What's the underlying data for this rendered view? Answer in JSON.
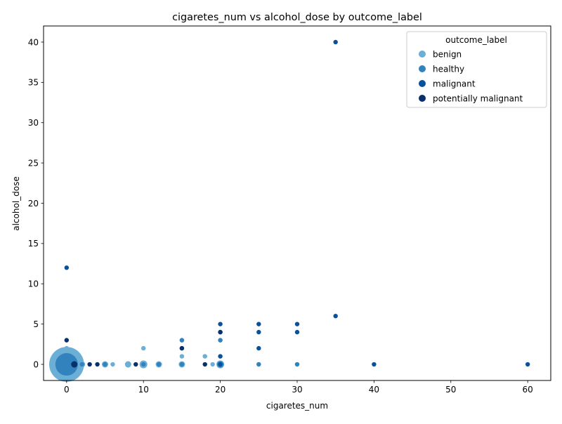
{
  "chart_data": {
    "type": "scatter",
    "title": "cigaretes_num vs alcohol_dose by outcome_label",
    "xlabel": "cigaretes_num",
    "ylabel": "alcohol_dose",
    "xlim": [
      -3,
      63
    ],
    "ylim": [
      -2,
      42
    ],
    "xticks": [
      0,
      10,
      20,
      30,
      40,
      50,
      60
    ],
    "yticks": [
      0,
      5,
      10,
      15,
      20,
      25,
      30,
      35,
      40
    ],
    "grid": false,
    "legend": {
      "title": "outcome_label",
      "placement": "top-right",
      "entries": [
        "benign",
        "healthy",
        "malignant",
        "potentially malignant"
      ]
    },
    "colors": {
      "benign": "#6baed6",
      "healthy": "#3182bd",
      "malignant": "#08519c",
      "potentially malignant": "#08306b"
    },
    "series": [
      {
        "name": "benign",
        "points": [
          [
            0,
            0,
            60
          ],
          [
            0,
            1,
            1
          ],
          [
            0,
            2,
            1
          ],
          [
            1,
            0,
            2
          ],
          [
            1,
            1,
            1
          ],
          [
            2,
            0,
            2
          ],
          [
            5,
            0,
            2
          ],
          [
            6,
            0,
            1
          ],
          [
            8,
            0,
            2
          ],
          [
            10,
            0,
            3
          ],
          [
            10,
            2,
            1
          ],
          [
            12,
            0,
            2
          ],
          [
            15,
            0,
            2
          ],
          [
            15,
            1,
            1
          ],
          [
            15,
            3,
            1
          ],
          [
            18,
            1,
            1
          ],
          [
            19,
            0,
            1
          ],
          [
            20,
            0,
            3
          ],
          [
            20,
            3,
            1
          ],
          [
            25,
            0,
            1
          ],
          [
            30,
            0,
            1
          ]
        ]
      },
      {
        "name": "healthy",
        "points": [
          [
            0,
            0,
            25
          ],
          [
            2,
            0,
            1
          ],
          [
            5,
            0,
            1
          ],
          [
            10,
            0,
            1
          ],
          [
            12,
            0,
            1
          ],
          [
            15,
            0,
            1
          ],
          [
            15,
            3,
            1
          ],
          [
            20,
            0,
            2
          ],
          [
            20,
            3,
            1
          ],
          [
            25,
            0,
            1
          ],
          [
            30,
            0,
            1
          ]
        ]
      },
      {
        "name": "malignant",
        "points": [
          [
            0,
            12,
            1
          ],
          [
            15,
            2,
            1
          ],
          [
            20,
            0,
            1
          ],
          [
            20,
            1,
            1
          ],
          [
            20,
            4,
            1
          ],
          [
            20,
            5,
            1
          ],
          [
            25,
            2,
            1
          ],
          [
            25,
            4,
            1
          ],
          [
            25,
            5,
            1
          ],
          [
            30,
            4,
            1
          ],
          [
            30,
            5,
            1
          ],
          [
            35,
            6,
            1
          ],
          [
            35,
            40,
            1
          ],
          [
            40,
            0,
            1
          ],
          [
            60,
            0,
            1
          ]
        ]
      },
      {
        "name": "potentially malignant",
        "points": [
          [
            0,
            3,
            1
          ],
          [
            1,
            0,
            2
          ],
          [
            3,
            0,
            1
          ],
          [
            4,
            0,
            1
          ],
          [
            9,
            0,
            1
          ],
          [
            15,
            2,
            1
          ],
          [
            18,
            0,
            1
          ],
          [
            20,
            4,
            1
          ]
        ]
      }
    ]
  }
}
